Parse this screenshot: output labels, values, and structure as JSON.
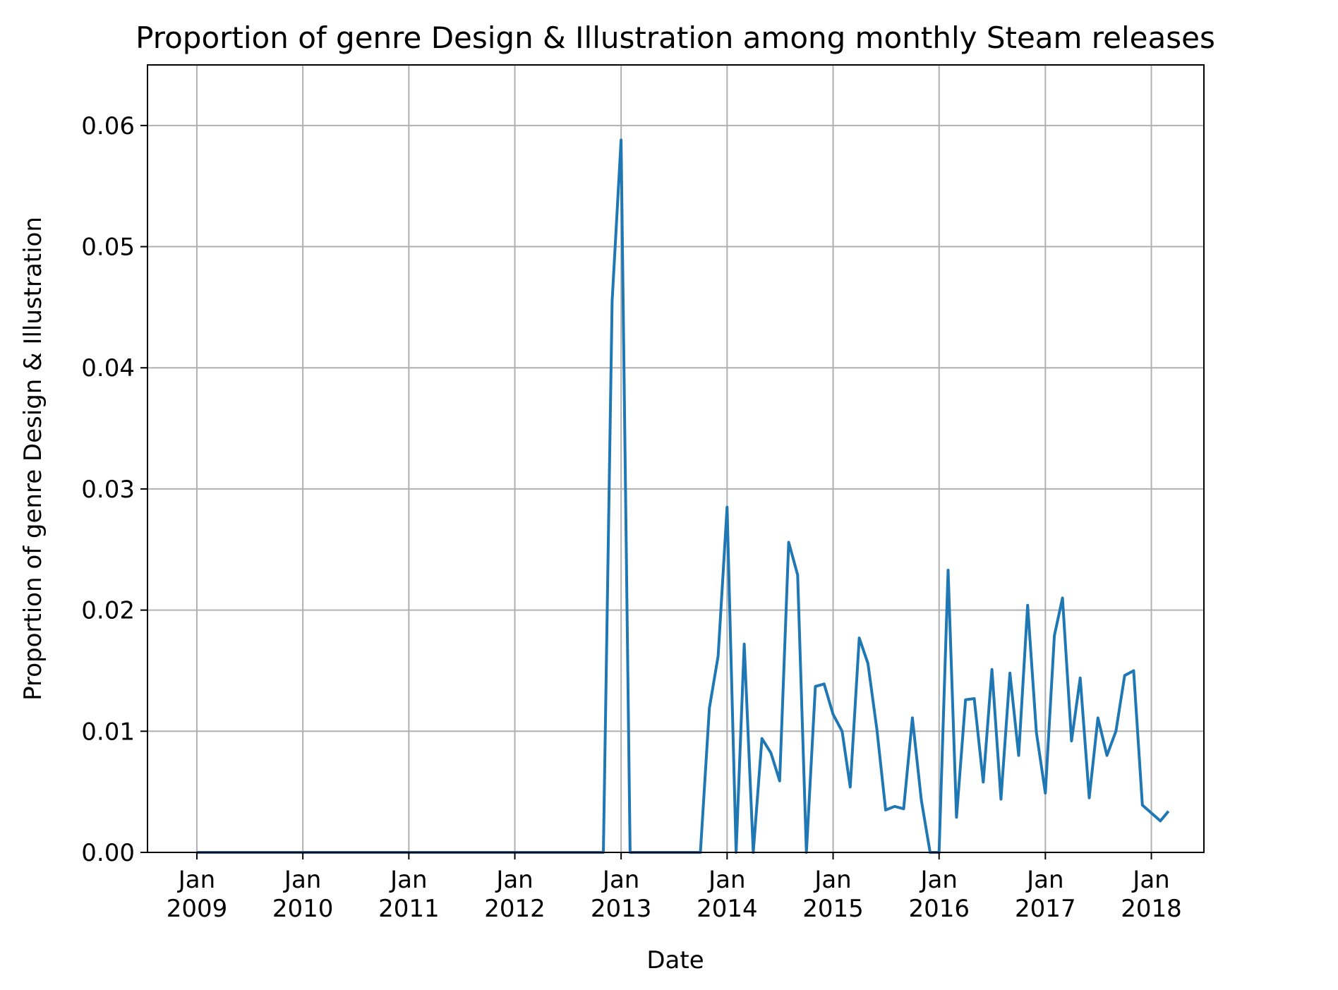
{
  "chart_data": {
    "type": "line",
    "title": "Proportion of genre Design & Illustration among monthly Steam releases",
    "xlabel": "Date",
    "ylabel": "Proportion of genre Design & Illustration",
    "grid": true,
    "xlim": [
      "2008-07-15",
      "2018-07-01"
    ],
    "ylim": [
      0,
      0.065
    ],
    "yticks": [
      "0.00",
      "0.01",
      "0.02",
      "0.03",
      "0.04",
      "0.05",
      "0.06"
    ],
    "xticks": [
      {
        "date": "2009-01-01",
        "label": [
          "Jan",
          "2009"
        ]
      },
      {
        "date": "2010-01-01",
        "label": [
          "Jan",
          "2010"
        ]
      },
      {
        "date": "2011-01-01",
        "label": [
          "Jan",
          "2011"
        ]
      },
      {
        "date": "2012-01-01",
        "label": [
          "Jan",
          "2012"
        ]
      },
      {
        "date": "2013-01-01",
        "label": [
          "Jan",
          "2013"
        ]
      },
      {
        "date": "2014-01-01",
        "label": [
          "Jan",
          "2014"
        ]
      },
      {
        "date": "2015-01-01",
        "label": [
          "Jan",
          "2015"
        ]
      },
      {
        "date": "2016-01-01",
        "label": [
          "Jan",
          "2016"
        ]
      },
      {
        "date": "2017-01-01",
        "label": [
          "Jan",
          "2017"
        ]
      },
      {
        "date": "2018-01-01",
        "label": [
          "Jan",
          "2018"
        ]
      }
    ],
    "series": [
      {
        "color": "#1f77b4",
        "points": [
          [
            "2009-01-01",
            0
          ],
          [
            "2012-11-01",
            0
          ],
          [
            "2012-12-01",
            0.0455
          ],
          [
            "2013-01-01",
            0.0588
          ],
          [
            "2013-02-01",
            0
          ],
          [
            "2013-10-01",
            0
          ],
          [
            "2013-11-01",
            0.0119
          ],
          [
            "2013-12-01",
            0.0162
          ],
          [
            "2014-01-01",
            0.0285
          ],
          [
            "2014-02-01",
            0
          ],
          [
            "2014-03-01",
            0.0172
          ],
          [
            "2014-04-01",
            0
          ],
          [
            "2014-05-01",
            0.0094
          ],
          [
            "2014-06-01",
            0.0082
          ],
          [
            "2014-07-01",
            0.0059
          ],
          [
            "2014-08-01",
            0.0256
          ],
          [
            "2014-09-01",
            0.0229
          ],
          [
            "2014-10-01",
            0
          ],
          [
            "2014-11-01",
            0.0137
          ],
          [
            "2014-12-01",
            0.0139
          ],
          [
            "2015-01-01",
            0.0114
          ],
          [
            "2015-02-01",
            0.01
          ],
          [
            "2015-03-01",
            0.0054
          ],
          [
            "2015-04-01",
            0.0177
          ],
          [
            "2015-05-01",
            0.0156
          ],
          [
            "2015-06-01",
            0.0101
          ],
          [
            "2015-07-01",
            0.0035
          ],
          [
            "2015-08-01",
            0.0038
          ],
          [
            "2015-09-01",
            0.0036
          ],
          [
            "2015-10-01",
            0.0111
          ],
          [
            "2015-11-01",
            0.0043
          ],
          [
            "2015-12-01",
            0
          ],
          [
            "2016-01-01",
            0
          ],
          [
            "2016-02-01",
            0.0233
          ],
          [
            "2016-03-01",
            0.0029
          ],
          [
            "2016-04-01",
            0.0126
          ],
          [
            "2016-05-01",
            0.0127
          ],
          [
            "2016-06-01",
            0.0058
          ],
          [
            "2016-07-01",
            0.0151
          ],
          [
            "2016-08-01",
            0.0044
          ],
          [
            "2016-09-01",
            0.0148
          ],
          [
            "2016-10-01",
            0.008
          ],
          [
            "2016-11-01",
            0.0204
          ],
          [
            "2016-12-01",
            0.0099
          ],
          [
            "2017-01-01",
            0.0049
          ],
          [
            "2017-02-01",
            0.0179
          ],
          [
            "2017-03-01",
            0.021
          ],
          [
            "2017-04-01",
            0.0092
          ],
          [
            "2017-05-01",
            0.0144
          ],
          [
            "2017-06-01",
            0.0045
          ],
          [
            "2017-07-01",
            0.0111
          ],
          [
            "2017-08-01",
            0.008
          ],
          [
            "2017-09-01",
            0.01
          ],
          [
            "2017-10-01",
            0.0146
          ],
          [
            "2017-11-01",
            0.015
          ],
          [
            "2017-12-01",
            0.0039
          ],
          [
            "2018-02-01",
            0.0026
          ],
          [
            "2018-03-01",
            0.0034
          ]
        ]
      }
    ]
  }
}
